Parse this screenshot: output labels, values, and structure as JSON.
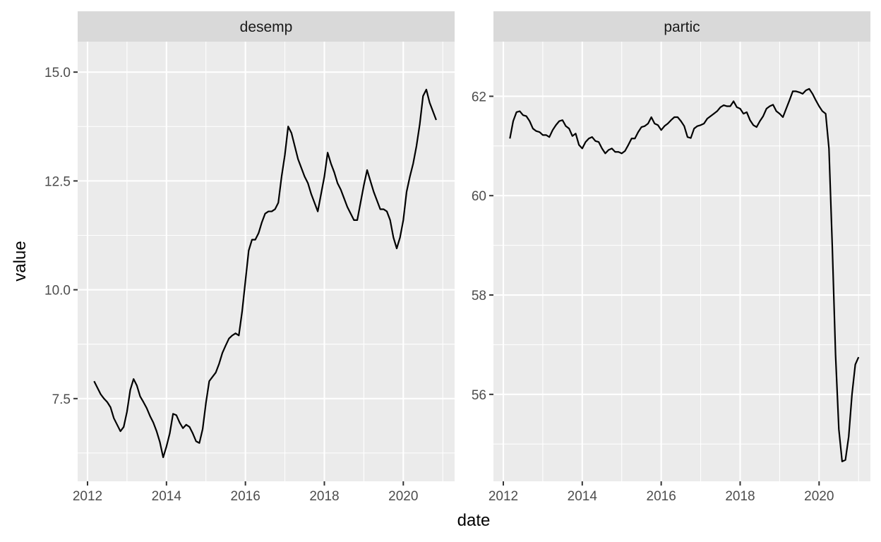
{
  "chart_data": {
    "type": "line",
    "xlabel": "date",
    "ylabel": "value",
    "facets": [
      {
        "name": "desemp",
        "xlim": [
          2011.75,
          2021.3
        ],
        "ylim": [
          5.6,
          15.7
        ],
        "x_ticks": [
          "2012",
          "2014",
          "2016",
          "2018",
          "2020"
        ],
        "y_ticks": [
          "7.5",
          "10.0",
          "12.5",
          "15.0"
        ],
        "y_tick_values": [
          7.5,
          10.0,
          12.5,
          15.0
        ],
        "y_minor_values": [
          6.25,
          8.75,
          11.25,
          13.75
        ],
        "x_minor_values": [
          2013,
          2015,
          2017,
          2019,
          2021
        ],
        "points": [
          [
            "2012-03",
            7.9
          ],
          [
            "2012-04",
            7.75
          ],
          [
            "2012-05",
            7.6
          ],
          [
            "2012-06",
            7.5
          ],
          [
            "2012-07",
            7.42
          ],
          [
            "2012-08",
            7.3
          ],
          [
            "2012-09",
            7.05
          ],
          [
            "2012-10",
            6.9
          ],
          [
            "2012-11",
            6.75
          ],
          [
            "2012-12",
            6.85
          ],
          [
            "2013-01",
            7.2
          ],
          [
            "2013-02",
            7.7
          ],
          [
            "2013-03",
            7.95
          ],
          [
            "2013-04",
            7.8
          ],
          [
            "2013-05",
            7.55
          ],
          [
            "2013-06",
            7.42
          ],
          [
            "2013-07",
            7.28
          ],
          [
            "2013-08",
            7.1
          ],
          [
            "2013-09",
            6.95
          ],
          [
            "2013-10",
            6.75
          ],
          [
            "2013-11",
            6.5
          ],
          [
            "2013-12",
            6.15
          ],
          [
            "2014-01",
            6.4
          ],
          [
            "2014-02",
            6.7
          ],
          [
            "2014-03",
            7.15
          ],
          [
            "2014-04",
            7.12
          ],
          [
            "2014-05",
            6.95
          ],
          [
            "2014-06",
            6.82
          ],
          [
            "2014-07",
            6.9
          ],
          [
            "2014-08",
            6.85
          ],
          [
            "2014-09",
            6.7
          ],
          [
            "2014-10",
            6.52
          ],
          [
            "2014-11",
            6.48
          ],
          [
            "2014-12",
            6.8
          ],
          [
            "2015-01",
            7.4
          ],
          [
            "2015-02",
            7.9
          ],
          [
            "2015-03",
            8.0
          ],
          [
            "2015-04",
            8.1
          ],
          [
            "2015-05",
            8.3
          ],
          [
            "2015-06",
            8.55
          ],
          [
            "2015-07",
            8.72
          ],
          [
            "2015-08",
            8.88
          ],
          [
            "2015-09",
            8.95
          ],
          [
            "2015-10",
            9.0
          ],
          [
            "2015-11",
            8.95
          ],
          [
            "2015-12",
            9.5
          ],
          [
            "2016-01",
            10.2
          ],
          [
            "2016-02",
            10.9
          ],
          [
            "2016-03",
            11.15
          ],
          [
            "2016-04",
            11.15
          ],
          [
            "2016-05",
            11.3
          ],
          [
            "2016-06",
            11.55
          ],
          [
            "2016-07",
            11.75
          ],
          [
            "2016-08",
            11.8
          ],
          [
            "2016-09",
            11.8
          ],
          [
            "2016-10",
            11.85
          ],
          [
            "2016-11",
            12.0
          ],
          [
            "2016-12",
            12.6
          ],
          [
            "2017-01",
            13.1
          ],
          [
            "2017-02",
            13.75
          ],
          [
            "2017-03",
            13.6
          ],
          [
            "2017-04",
            13.3
          ],
          [
            "2017-05",
            13.0
          ],
          [
            "2017-06",
            12.8
          ],
          [
            "2017-07",
            12.6
          ],
          [
            "2017-08",
            12.45
          ],
          [
            "2017-09",
            12.2
          ],
          [
            "2017-10",
            12.0
          ],
          [
            "2017-11",
            11.8
          ],
          [
            "2017-12",
            12.2
          ],
          [
            "2018-01",
            12.6
          ],
          [
            "2018-02",
            13.15
          ],
          [
            "2018-03",
            12.9
          ],
          [
            "2018-04",
            12.7
          ],
          [
            "2018-05",
            12.45
          ],
          [
            "2018-06",
            12.3
          ],
          [
            "2018-07",
            12.1
          ],
          [
            "2018-08",
            11.9
          ],
          [
            "2018-09",
            11.75
          ],
          [
            "2018-10",
            11.6
          ],
          [
            "2018-11",
            11.6
          ],
          [
            "2018-12",
            12.0
          ],
          [
            "2019-01",
            12.4
          ],
          [
            "2019-02",
            12.75
          ],
          [
            "2019-03",
            12.5
          ],
          [
            "2019-04",
            12.25
          ],
          [
            "2019-05",
            12.05
          ],
          [
            "2019-06",
            11.85
          ],
          [
            "2019-07",
            11.85
          ],
          [
            "2019-08",
            11.8
          ],
          [
            "2019-09",
            11.6
          ],
          [
            "2019-10",
            11.2
          ],
          [
            "2019-11",
            10.95
          ],
          [
            "2019-12",
            11.2
          ],
          [
            "2020-01",
            11.6
          ],
          [
            "2020-02",
            12.25
          ],
          [
            "2020-03",
            12.6
          ],
          [
            "2020-04",
            12.9
          ],
          [
            "2020-05",
            13.3
          ],
          [
            "2020-06",
            13.8
          ],
          [
            "2020-07",
            14.45
          ],
          [
            "2020-08",
            14.6
          ],
          [
            "2020-09",
            14.3
          ],
          [
            "2020-10",
            14.1
          ],
          [
            "2020-11",
            13.9
          ]
        ]
      },
      {
        "name": "partic",
        "xlim": [
          2011.75,
          2021.3
        ],
        "ylim": [
          54.25,
          63.1
        ],
        "x_ticks": [
          "2012",
          "2014",
          "2016",
          "2018",
          "2020"
        ],
        "y_ticks": [
          "56",
          "58",
          "60",
          "62"
        ],
        "y_tick_values": [
          56,
          58,
          60,
          62
        ],
        "y_minor_values": [
          55,
          57,
          59,
          61
        ],
        "x_minor_values": [
          2013,
          2015,
          2017,
          2019,
          2021
        ],
        "points": [
          [
            "2012-03",
            61.15
          ],
          [
            "2012-04",
            61.5
          ],
          [
            "2012-05",
            61.68
          ],
          [
            "2012-06",
            61.7
          ],
          [
            "2012-07",
            61.62
          ],
          [
            "2012-08",
            61.6
          ],
          [
            "2012-09",
            61.5
          ],
          [
            "2012-10",
            61.35
          ],
          [
            "2012-11",
            61.3
          ],
          [
            "2012-12",
            61.28
          ],
          [
            "2013-01",
            61.22
          ],
          [
            "2013-02",
            61.22
          ],
          [
            "2013-03",
            61.18
          ],
          [
            "2013-04",
            61.32
          ],
          [
            "2013-05",
            61.42
          ],
          [
            "2013-06",
            61.5
          ],
          [
            "2013-07",
            61.52
          ],
          [
            "2013-08",
            61.4
          ],
          [
            "2013-09",
            61.35
          ],
          [
            "2013-10",
            61.2
          ],
          [
            "2013-11",
            61.25
          ],
          [
            "2013-12",
            61.02
          ],
          [
            "2014-01",
            60.95
          ],
          [
            "2014-02",
            61.08
          ],
          [
            "2014-03",
            61.15
          ],
          [
            "2014-04",
            61.18
          ],
          [
            "2014-05",
            61.1
          ],
          [
            "2014-06",
            61.08
          ],
          [
            "2014-07",
            60.95
          ],
          [
            "2014-08",
            60.85
          ],
          [
            "2014-09",
            60.92
          ],
          [
            "2014-10",
            60.95
          ],
          [
            "2014-11",
            60.88
          ],
          [
            "2014-12",
            60.88
          ],
          [
            "2015-01",
            60.85
          ],
          [
            "2015-02",
            60.9
          ],
          [
            "2015-03",
            61.02
          ],
          [
            "2015-04",
            61.15
          ],
          [
            "2015-05",
            61.15
          ],
          [
            "2015-06",
            61.28
          ],
          [
            "2015-07",
            61.38
          ],
          [
            "2015-08",
            61.4
          ],
          [
            "2015-09",
            61.45
          ],
          [
            "2015-10",
            61.58
          ],
          [
            "2015-11",
            61.45
          ],
          [
            "2015-12",
            61.42
          ],
          [
            "2016-01",
            61.32
          ],
          [
            "2016-02",
            61.4
          ],
          [
            "2016-03",
            61.45
          ],
          [
            "2016-04",
            61.52
          ],
          [
            "2016-05",
            61.58
          ],
          [
            "2016-06",
            61.58
          ],
          [
            "2016-07",
            61.5
          ],
          [
            "2016-08",
            61.4
          ],
          [
            "2016-09",
            61.18
          ],
          [
            "2016-10",
            61.16
          ],
          [
            "2016-11",
            61.35
          ],
          [
            "2016-12",
            61.4
          ],
          [
            "2017-01",
            61.42
          ],
          [
            "2017-02",
            61.45
          ],
          [
            "2017-03",
            61.55
          ],
          [
            "2017-04",
            61.6
          ],
          [
            "2017-05",
            61.65
          ],
          [
            "2017-06",
            61.7
          ],
          [
            "2017-07",
            61.78
          ],
          [
            "2017-08",
            61.82
          ],
          [
            "2017-09",
            61.8
          ],
          [
            "2017-10",
            61.8
          ],
          [
            "2017-11",
            61.9
          ],
          [
            "2017-12",
            61.78
          ],
          [
            "2018-01",
            61.75
          ],
          [
            "2018-02",
            61.65
          ],
          [
            "2018-03",
            61.68
          ],
          [
            "2018-04",
            61.52
          ],
          [
            "2018-05",
            61.42
          ],
          [
            "2018-06",
            61.38
          ],
          [
            "2018-07",
            61.5
          ],
          [
            "2018-08",
            61.6
          ],
          [
            "2018-09",
            61.75
          ],
          [
            "2018-10",
            61.8
          ],
          [
            "2018-11",
            61.83
          ],
          [
            "2018-12",
            61.7
          ],
          [
            "2019-01",
            61.65
          ],
          [
            "2019-02",
            61.58
          ],
          [
            "2019-03",
            61.75
          ],
          [
            "2019-04",
            61.92
          ],
          [
            "2019-05",
            62.1
          ],
          [
            "2019-06",
            62.1
          ],
          [
            "2019-07",
            62.08
          ],
          [
            "2019-08",
            62.05
          ],
          [
            "2019-09",
            62.12
          ],
          [
            "2019-10",
            62.15
          ],
          [
            "2019-11",
            62.05
          ],
          [
            "2019-12",
            61.92
          ],
          [
            "2020-01",
            61.8
          ],
          [
            "2020-02",
            61.7
          ],
          [
            "2020-03",
            61.65
          ],
          [
            "2020-04",
            60.95
          ],
          [
            "2020-05",
            59.0
          ],
          [
            "2020-06",
            56.8
          ],
          [
            "2020-07",
            55.3
          ],
          [
            "2020-08",
            54.65
          ],
          [
            "2020-09",
            54.68
          ],
          [
            "2020-10",
            55.15
          ],
          [
            "2020-11",
            56.0
          ],
          [
            "2020-12",
            56.6
          ],
          [
            "2021-01",
            56.75
          ]
        ]
      }
    ]
  }
}
